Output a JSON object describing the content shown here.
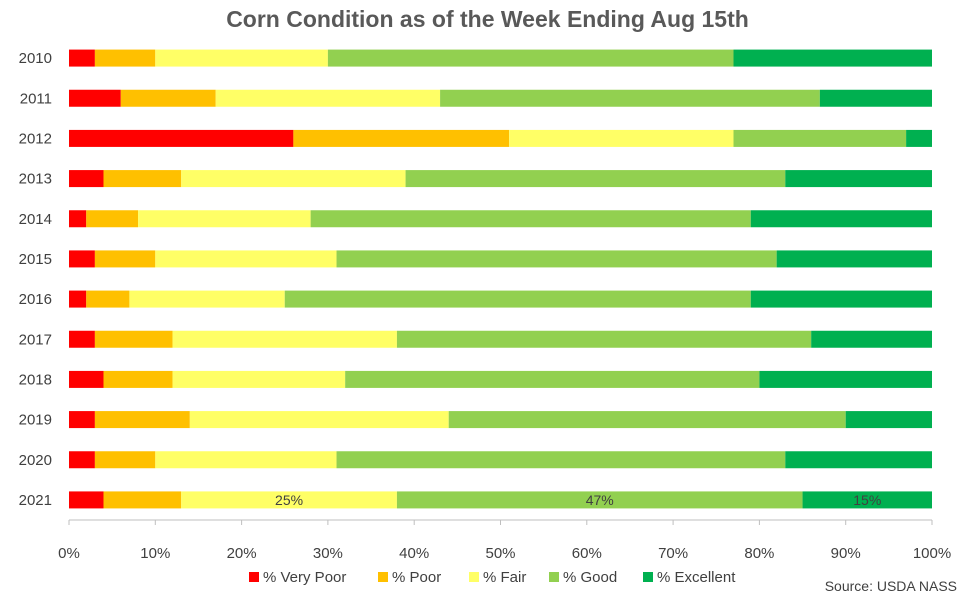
{
  "source": "Source: USDA NASS",
  "chart_data": {
    "type": "bar",
    "orientation": "horizontal",
    "stacked": "percent",
    "title": "Corn Condition as of the Week Ending Aug 15th",
    "categories": [
      "2010",
      "2011",
      "2012",
      "2013",
      "2014",
      "2015",
      "2016",
      "2017",
      "2018",
      "2019",
      "2020",
      "2021"
    ],
    "series": [
      {
        "name": "% Very Poor",
        "color": "#ff0000",
        "values": [
          3,
          6,
          26,
          4,
          2,
          3,
          2,
          3,
          4,
          3,
          3,
          4
        ]
      },
      {
        "name": "% Poor",
        "color": "#ffc000",
        "values": [
          7,
          11,
          25,
          9,
          6,
          7,
          5,
          9,
          8,
          11,
          7,
          9
        ]
      },
      {
        "name": "% Fair",
        "color": "#ffff66",
        "values": [
          20,
          26,
          26,
          26,
          20,
          21,
          18,
          26,
          20,
          30,
          21,
          25
        ]
      },
      {
        "name": "% Good",
        "color": "#92d050",
        "values": [
          47,
          44,
          20,
          44,
          51,
          51,
          54,
          48,
          48,
          46,
          52,
          47
        ]
      },
      {
        "name": "% Excellent",
        "color": "#00b050",
        "values": [
          23,
          13,
          3,
          17,
          21,
          18,
          21,
          14,
          20,
          10,
          17,
          15
        ]
      }
    ],
    "data_labels": [
      {
        "category": "2021",
        "series": "% Fair",
        "text": "25%"
      },
      {
        "category": "2021",
        "series": "% Good",
        "text": "47%"
      },
      {
        "category": "2021",
        "series": "% Excellent",
        "text": "15%"
      }
    ],
    "x_ticks": [
      "0%",
      "10%",
      "20%",
      "30%",
      "40%",
      "50%",
      "60%",
      "70%",
      "80%",
      "90%",
      "100%"
    ],
    "xlim": [
      0,
      100
    ],
    "legend_position": "bottom",
    "grid": false
  }
}
